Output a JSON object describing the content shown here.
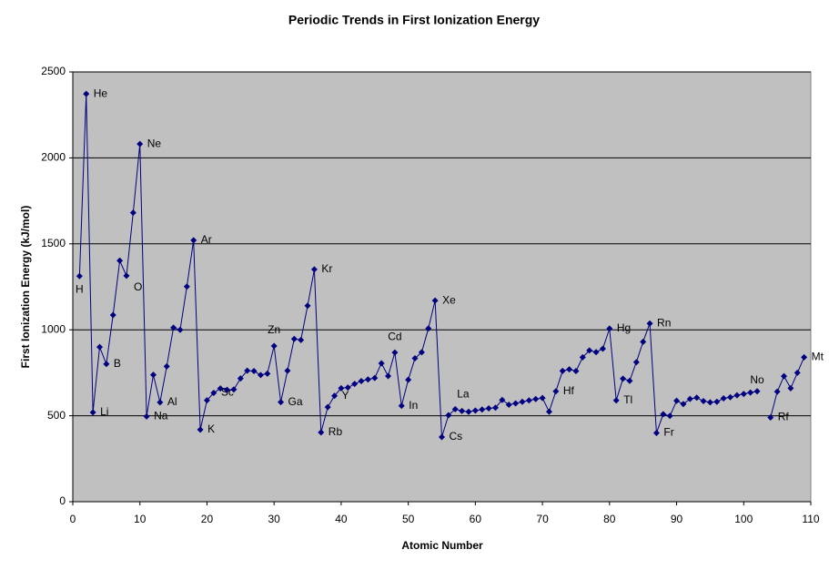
{
  "chart_data": {
    "type": "line",
    "title": "Periodic Trends in First Ionization Energy",
    "x_label": "Atomic Number",
    "y_label": "First Ionization Energy (kJ/mol)",
    "x": [
      1,
      2,
      3,
      4,
      5,
      6,
      7,
      8,
      9,
      10,
      11,
      12,
      13,
      14,
      15,
      16,
      17,
      18,
      19,
      20,
      21,
      22,
      23,
      24,
      25,
      26,
      27,
      28,
      29,
      30,
      31,
      32,
      33,
      34,
      35,
      36,
      37,
      38,
      39,
      40,
      41,
      42,
      43,
      44,
      45,
      46,
      47,
      48,
      49,
      50,
      51,
      52,
      53,
      54,
      55,
      56,
      57,
      58,
      59,
      60,
      61,
      62,
      63,
      64,
      65,
      66,
      67,
      68,
      69,
      70,
      71,
      72,
      73,
      74,
      75,
      76,
      77,
      78,
      79,
      80,
      81,
      82,
      83,
      84,
      85,
      86,
      87,
      88,
      89,
      90,
      91,
      92,
      93,
      94,
      95,
      96,
      97,
      98,
      99,
      100,
      101,
      102,
      103,
      104,
      105,
      106,
      107,
      108,
      109
    ],
    "series": [
      {
        "color": "#000080",
        "values": [
          1312,
          2372,
          520,
          900,
          801,
          1086,
          1402,
          1314,
          1681,
          2081,
          496,
          738,
          578,
          787,
          1012,
          1000,
          1251,
          1521,
          419,
          590,
          633,
          659,
          651,
          653,
          717,
          762,
          760,
          737,
          745,
          906,
          579,
          762,
          947,
          941,
          1140,
          1351,
          403,
          550,
          616,
          660,
          664,
          685,
          702,
          711,
          720,
          805,
          731,
          868,
          558,
          709,
          834,
          869,
          1008,
          1170,
          376,
          503,
          538,
          528,
          523,
          530,
          536,
          543,
          547,
          592,
          564,
          572,
          581,
          589,
          597,
          603,
          524,
          642,
          761,
          770,
          760,
          840,
          880,
          870,
          890,
          1007,
          589,
          716,
          703,
          812,
          930,
          1037,
          400,
          509,
          499,
          587,
          568,
          598,
          605,
          585,
          578,
          581,
          601,
          608,
          619,
          627,
          635,
          642,
          null,
          490,
          640,
          730,
          660,
          750,
          840
        ],
        "point_labels": [
          "H",
          "He",
          "Li",
          null,
          "B",
          null,
          null,
          "O",
          null,
          "Ne",
          "Na",
          null,
          "Al",
          null,
          null,
          null,
          null,
          "Ar",
          "K",
          null,
          "Sc",
          null,
          null,
          null,
          null,
          null,
          null,
          null,
          null,
          "Zn",
          "Ga",
          null,
          null,
          null,
          null,
          "Kr",
          "Rb",
          null,
          "Y",
          null,
          null,
          null,
          null,
          null,
          null,
          null,
          null,
          "Cd",
          "In",
          null,
          null,
          null,
          null,
          "Xe",
          "Cs",
          null,
          "La",
          null,
          null,
          null,
          null,
          null,
          null,
          null,
          null,
          null,
          null,
          null,
          null,
          null,
          null,
          "Hf",
          null,
          null,
          null,
          null,
          null,
          null,
          null,
          "Hg",
          "Tl",
          null,
          null,
          null,
          null,
          "Rn",
          "Fr",
          null,
          null,
          null,
          null,
          null,
          null,
          null,
          null,
          null,
          null,
          null,
          null,
          null,
          null,
          "No",
          null,
          "Rf",
          null,
          null,
          null,
          null,
          "Mt"
        ]
      }
    ],
    "xlim": [
      0,
      110
    ],
    "xticks": [
      0,
      10,
      20,
      30,
      40,
      50,
      60,
      70,
      80,
      90,
      100,
      110
    ],
    "ylim": [
      0,
      2500
    ],
    "yticks": [
      0,
      500,
      1000,
      1500,
      2000,
      2500
    ],
    "grid": true
  }
}
